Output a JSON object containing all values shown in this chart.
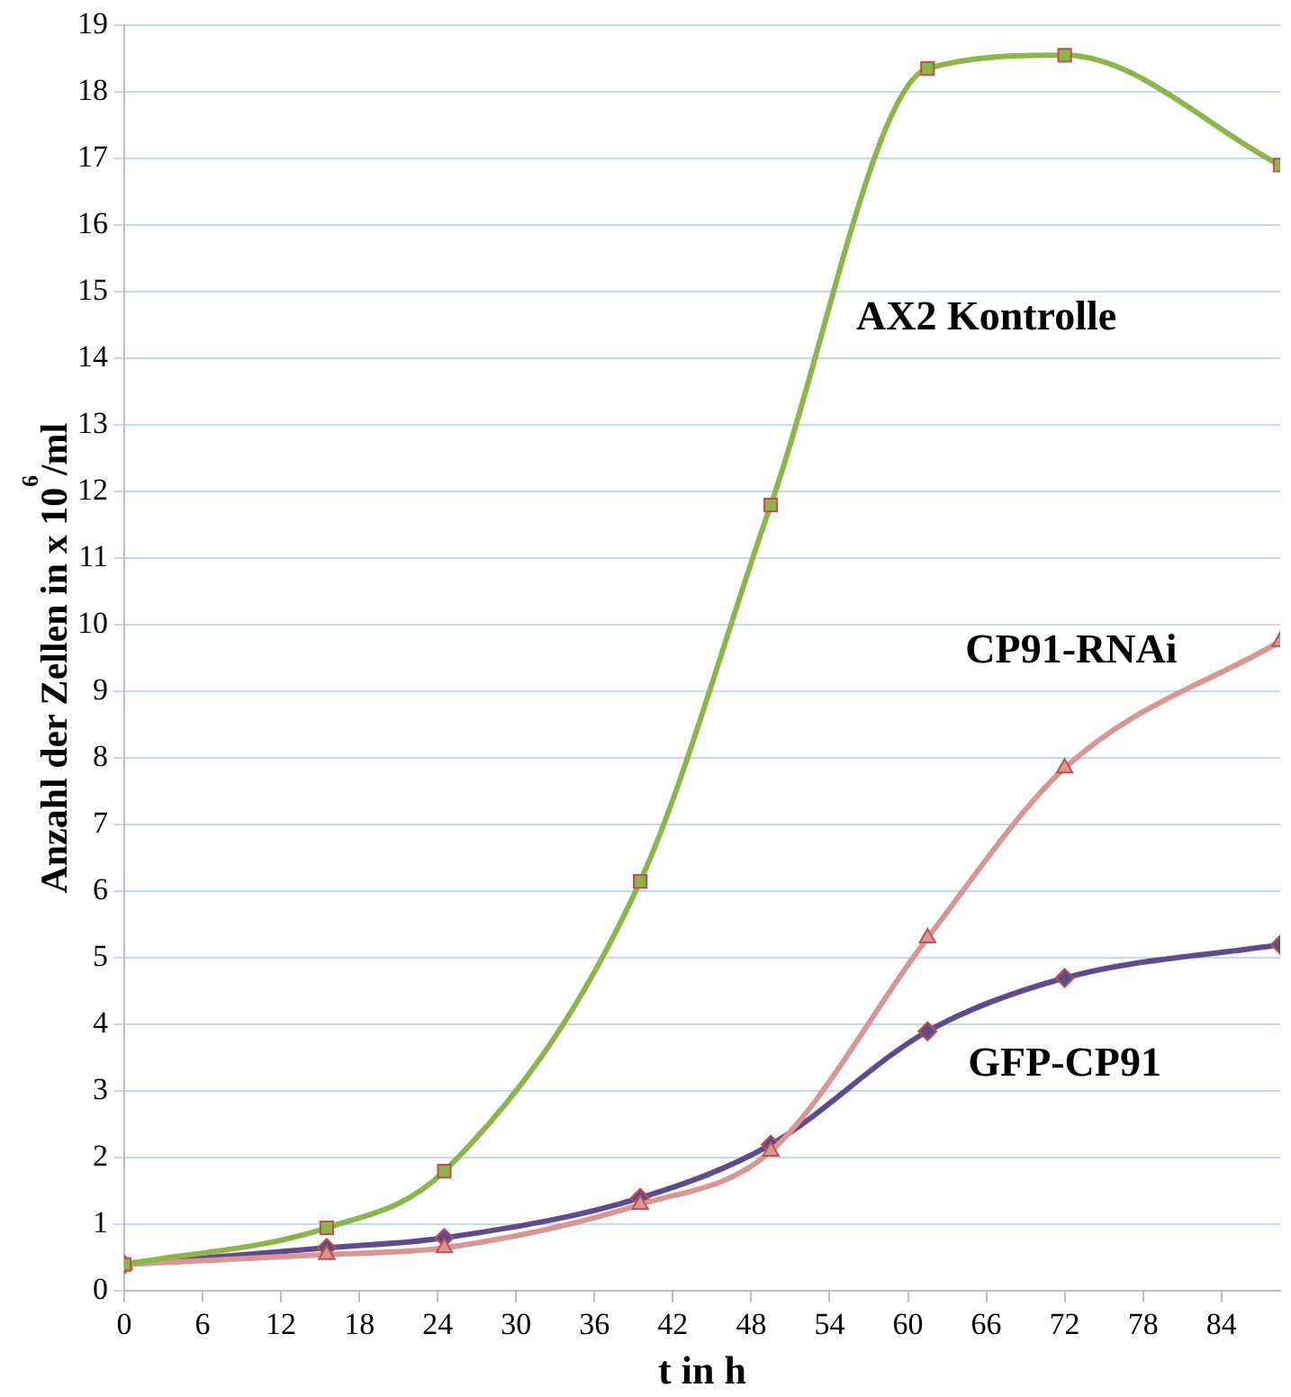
{
  "chart_data": {
    "type": "line",
    "xlabel": "t in h",
    "ylabel": "Anzahl der Zellen in x 10$^{6}$/ml",
    "x": [
      0,
      15.5,
      24.5,
      39.5,
      49.5,
      61.5,
      72,
      88.5
    ],
    "series": [
      {
        "name": "AX2 Kontrolle",
        "color": "#8db54c",
        "marker": "square",
        "values": [
          0.4,
          0.95,
          1.8,
          6.15,
          11.8,
          18.35,
          18.55,
          16.9
        ]
      },
      {
        "name": "CP91-RNAi",
        "color": "#d99694",
        "marker": "triangle",
        "values": [
          0.4,
          0.55,
          0.65,
          1.3,
          2.1,
          5.3,
          7.85,
          9.75
        ]
      },
      {
        "name": "GFP-CP91",
        "color": "#5f4b8b",
        "marker": "diamond",
        "values": [
          0.4,
          0.65,
          0.8,
          1.4,
          2.2,
          3.9,
          4.7,
          5.2
        ]
      }
    ],
    "xlim": [
      0,
      88.5
    ],
    "xticks": [
      0,
      6,
      12,
      18,
      24,
      30,
      36,
      42,
      48,
      54,
      60,
      66,
      72,
      78,
      84
    ],
    "ylim": [
      0,
      19
    ],
    "yticks": [
      0,
      1,
      2,
      3,
      4,
      5,
      6,
      7,
      8,
      9,
      10,
      11,
      12,
      13,
      14,
      15,
      16,
      17,
      18,
      19
    ],
    "grid": "y",
    "legend": false
  }
}
